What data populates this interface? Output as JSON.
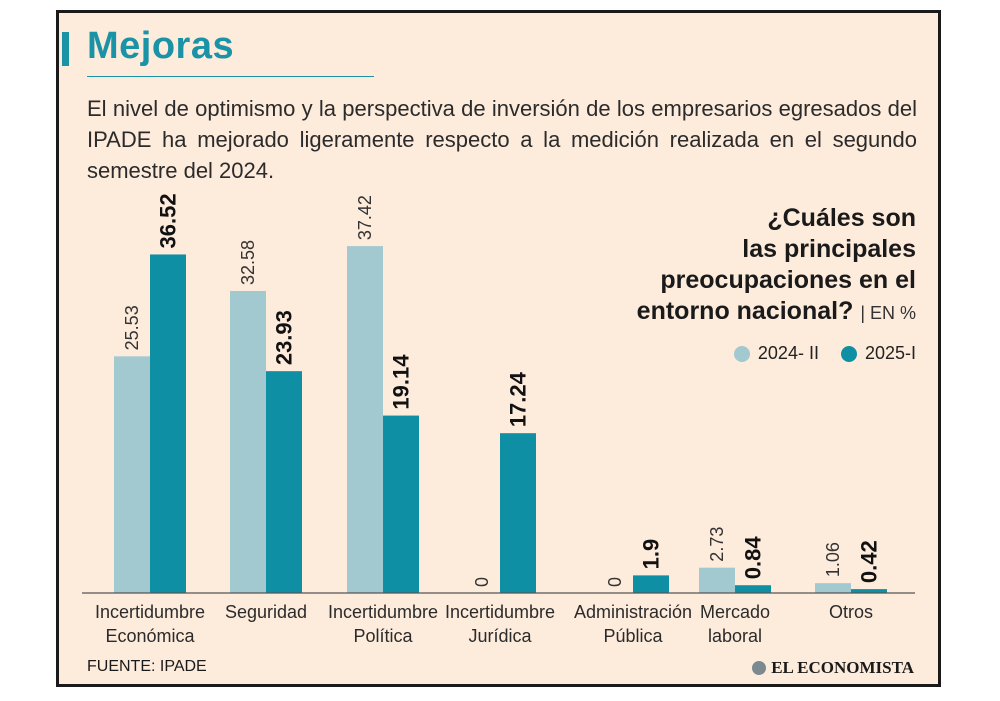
{
  "header": {
    "title": "Mejoras",
    "subtitle": "El nivel de optimismo y la perspectiva de inversión de los empresarios egresados del IPADE ha mejorado ligeramente respecto a la medición realizada en el segundo semestre del 2024."
  },
  "question": {
    "line1": "¿Cuáles son",
    "line2": "las principales",
    "line3": "preocupaciones en el",
    "line4": "entorno nacional?",
    "unit": "| EN %"
  },
  "footer": {
    "source": "FUENTE: IPADE",
    "brand": "EL ECONOMISTA"
  },
  "colors": {
    "series_2024": "#a3c9d0",
    "series_2025": "#0f8fa4",
    "accent": "#1b93a6",
    "background": "#fdebdc"
  },
  "chart_data": {
    "type": "bar",
    "categories": [
      [
        "Incertidumbre",
        "Económica"
      ],
      [
        "Seguridad"
      ],
      [
        "Incertidumbre",
        "Política"
      ],
      [
        "Incertidumbre",
        "Jurídica"
      ],
      [
        "Administración",
        "Pública"
      ],
      [
        "Mercado",
        "laboral"
      ],
      [
        "Otros"
      ]
    ],
    "series": [
      {
        "name": "2024- II",
        "values": [
          25.53,
          32.58,
          37.42,
          0,
          0,
          2.73,
          1.06
        ],
        "labels": [
          "25.53",
          "32.58",
          "37.42",
          "0",
          "0",
          "2.73",
          "1.06"
        ]
      },
      {
        "name": "2025-I",
        "values": [
          36.52,
          23.93,
          19.14,
          17.24,
          1.9,
          0.84,
          0.42
        ],
        "labels": [
          "36.52",
          "23.93",
          "19.14",
          "17.24",
          "1.9",
          "0.84",
          "0.42"
        ]
      }
    ],
    "ylim": [
      0,
      40
    ],
    "legend": "top-right"
  }
}
